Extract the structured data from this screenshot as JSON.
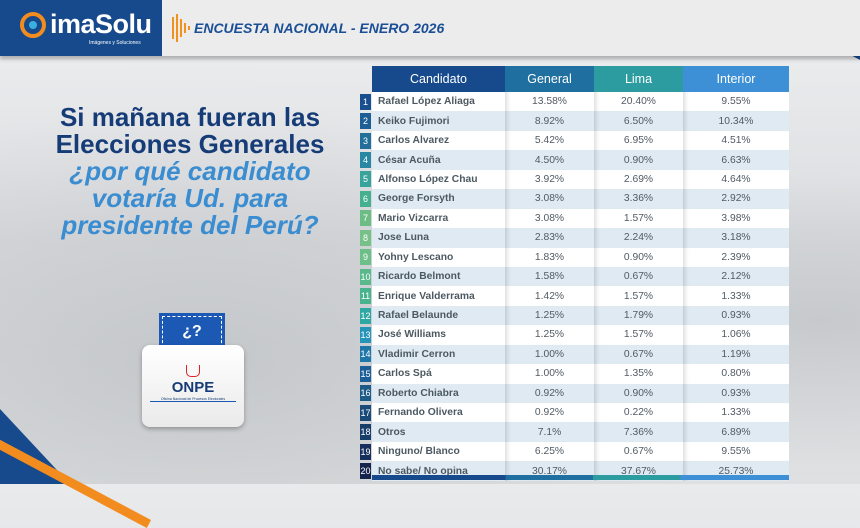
{
  "header": {
    "brand": "imaSolu",
    "brand_sub": "Imágenes y Soluciones",
    "title": "ENCUESTA NACIONAL - ENERO 2026"
  },
  "question": {
    "line1": "Si mañana fueran las Elecciones Generales",
    "line2": "¿por qué candidato votaría Ud. para presidente del Perú?"
  },
  "ballot": {
    "mark": "¿?",
    "org": "ONPE",
    "org_sub": "Oficina Nacional de Procesos Electorales"
  },
  "colors": {
    "brand_blue": "#164a8c",
    "accent_orange": "#f28c1e",
    "general": "#1f6fa0",
    "lima": "#2c9ca0",
    "interior": "#3d8fd6"
  },
  "table": {
    "headers": [
      "Candidato",
      "General",
      "Lima",
      "Interior"
    ],
    "rows": [
      {
        "n": "1",
        "name": "Rafael López Aliaga",
        "general": "13.58%",
        "lima": "20.40%",
        "interior": "9.55%",
        "color": "#1a4f8f"
      },
      {
        "n": "2",
        "name": "Keiko Fujimori",
        "general": "8.92%",
        "lima": "6.50%",
        "interior": "10.34%",
        "color": "#1d5e96"
      },
      {
        "n": "3",
        "name": "Carlos Alvarez",
        "general": "5.42%",
        "lima": "6.95%",
        "interior": "4.51%",
        "color": "#236f9c"
      },
      {
        "n": "4",
        "name": "César Acuña",
        "general": "4.50%",
        "lima": "0.90%",
        "interior": "6.63%",
        "color": "#2987a4"
      },
      {
        "n": "5",
        "name": "Alfonso López Chau",
        "general": "3.92%",
        "lima": "2.69%",
        "interior": "4.64%",
        "color": "#38a39a"
      },
      {
        "n": "6",
        "name": "George Forsyth",
        "general": "3.08%",
        "lima": "3.36%",
        "interior": "2.92%",
        "color": "#45b08e"
      },
      {
        "n": "7",
        "name": "Mario Vizcarra",
        "general": "3.08%",
        "lima": "1.57%",
        "interior": "3.98%",
        "color": "#6cbd84"
      },
      {
        "n": "8",
        "name": "Jose Luna",
        "general": "2.83%",
        "lima": "2.24%",
        "interior": "3.18%",
        "color": "#75c187"
      },
      {
        "n": "9",
        "name": "Yohny Lescano",
        "general": "1.83%",
        "lima": "0.90%",
        "interior": "2.39%",
        "color": "#6dbf88"
      },
      {
        "n": "10",
        "name": "Ricardo Belmont",
        "general": "1.58%",
        "lima": "0.67%",
        "interior": "2.12%",
        "color": "#5ab98a"
      },
      {
        "n": "11",
        "name": "Enrique Valderrama",
        "general": "1.42%",
        "lima": "1.57%",
        "interior": "1.33%",
        "color": "#48b38c"
      },
      {
        "n": "12",
        "name": "Rafael Belaunde",
        "general": "1.25%",
        "lima": "1.79%",
        "interior": "0.93%",
        "color": "#2fa8a4"
      },
      {
        "n": "13",
        "name": "José Williams",
        "general": "1.25%",
        "lima": "1.57%",
        "interior": "1.06%",
        "color": "#2494b8"
      },
      {
        "n": "14",
        "name": "Vladimir Cerron",
        "general": "1.00%",
        "lima": "0.67%",
        "interior": "1.19%",
        "color": "#1f76a8"
      },
      {
        "n": "15",
        "name": "Carlos Spá",
        "general": "1.00%",
        "lima": "1.35%",
        "interior": "0.80%",
        "color": "#1c5f98"
      },
      {
        "n": "16",
        "name": "Roberto Chiabra",
        "general": "0.92%",
        "lima": "0.90%",
        "interior": "0.93%",
        "color": "#1c5a88"
      },
      {
        "n": "17",
        "name": "Fernando Olivera",
        "general": "0.92%",
        "lima": "0.22%",
        "interior": "1.33%",
        "color": "#1a4b78"
      },
      {
        "n": "18",
        "name": "Otros",
        "general": "7.1%",
        "lima": "7.36%",
        "interior": "6.89%",
        "color": "#173e6a"
      },
      {
        "n": "19",
        "name": "Ninguno/ Blanco",
        "general": "6.25%",
        "lima": "0.67%",
        "interior": "9.55%",
        "color": "#172f5c"
      },
      {
        "n": "20",
        "name": "No sabe/ No opina",
        "general": "30.17%",
        "lima": "37.67%",
        "interior": "25.73%",
        "color": "#14244c"
      }
    ]
  }
}
